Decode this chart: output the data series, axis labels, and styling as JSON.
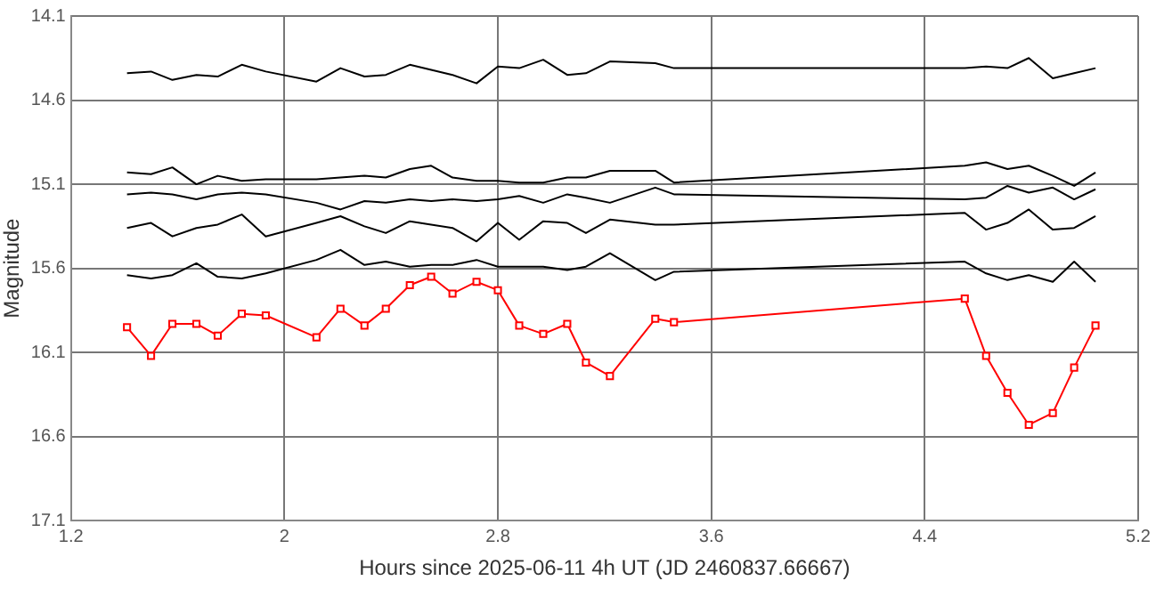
{
  "chart_data": {
    "type": "line",
    "xlabel": "Hours since 2025-06-11 4h UT (JD 2460837.66667)",
    "ylabel": "Magnitude",
    "x": [
      1.41,
      1.5,
      1.58,
      1.67,
      1.75,
      1.84,
      1.93,
      2.12,
      2.21,
      2.3,
      2.38,
      2.47,
      2.55,
      2.63,
      2.72,
      2.8,
      2.88,
      2.97,
      3.06,
      3.13,
      3.22,
      3.39,
      3.46,
      4.55,
      4.63,
      4.71,
      4.79,
      4.88,
      4.96,
      5.04
    ],
    "series": [
      {
        "color": "#000000",
        "marker": "none",
        "values": [
          14.44,
          14.43,
          14.48,
          14.45,
          14.46,
          14.39,
          14.43,
          14.49,
          14.41,
          14.46,
          14.45,
          14.39,
          14.42,
          14.45,
          14.5,
          14.4,
          14.41,
          14.36,
          14.45,
          14.44,
          14.37,
          14.38,
          14.41,
          14.41,
          14.4,
          14.41,
          14.35,
          14.47,
          14.44,
          14.41
        ]
      },
      {
        "color": "#000000",
        "marker": "none",
        "values": [
          15.03,
          15.04,
          15.0,
          15.1,
          15.05,
          15.08,
          15.07,
          15.07,
          15.06,
          15.05,
          15.06,
          15.01,
          14.99,
          15.06,
          15.08,
          15.08,
          15.09,
          15.09,
          15.06,
          15.06,
          15.02,
          15.02,
          15.09,
          14.99,
          14.97,
          15.01,
          14.99,
          15.05,
          15.11,
          15.03
        ]
      },
      {
        "color": "#000000",
        "marker": "none",
        "values": [
          15.16,
          15.15,
          15.16,
          15.19,
          15.16,
          15.15,
          15.16,
          15.21,
          15.25,
          15.2,
          15.21,
          15.19,
          15.2,
          15.19,
          15.2,
          15.19,
          15.17,
          15.21,
          15.16,
          15.18,
          15.21,
          15.12,
          15.16,
          15.19,
          15.18,
          15.11,
          15.15,
          15.12,
          15.19,
          15.13
        ]
      },
      {
        "color": "#000000",
        "marker": "none",
        "values": [
          15.36,
          15.33,
          15.41,
          15.36,
          15.34,
          15.28,
          15.41,
          15.33,
          15.29,
          15.35,
          15.39,
          15.32,
          15.34,
          15.36,
          15.44,
          15.33,
          15.43,
          15.32,
          15.33,
          15.39,
          15.31,
          15.34,
          15.34,
          15.27,
          15.37,
          15.33,
          15.25,
          15.37,
          15.36,
          15.29
        ]
      },
      {
        "color": "#000000",
        "marker": "none",
        "values": [
          15.64,
          15.66,
          15.64,
          15.57,
          15.65,
          15.66,
          15.63,
          15.55,
          15.49,
          15.58,
          15.56,
          15.59,
          15.58,
          15.58,
          15.55,
          15.59,
          15.59,
          15.59,
          15.61,
          15.59,
          15.51,
          15.67,
          15.62,
          15.56,
          15.63,
          15.67,
          15.64,
          15.68,
          15.56,
          15.68
        ]
      },
      {
        "color": "#ff0000",
        "marker": "square",
        "values": [
          15.95,
          16.12,
          15.93,
          15.93,
          16.0,
          15.87,
          15.88,
          16.01,
          15.84,
          15.94,
          15.84,
          15.7,
          15.65,
          15.75,
          15.68,
          15.73,
          15.94,
          15.99,
          15.93,
          16.16,
          16.24,
          15.9,
          15.92,
          15.78,
          16.12,
          16.34,
          16.53,
          16.46,
          16.19,
          15.94
        ]
      }
    ],
    "xlim": [
      1.2,
      5.2
    ],
    "xticks": [
      1.2,
      2,
      2.8,
      3.6,
      4.4,
      5.2
    ],
    "ylim": [
      17.1,
      14.1
    ],
    "yticks": [
      14.1,
      14.6,
      15.1,
      15.6,
      16.1,
      16.6,
      17.1
    ],
    "grid": true,
    "legend": false,
    "line_style": "solid"
  }
}
